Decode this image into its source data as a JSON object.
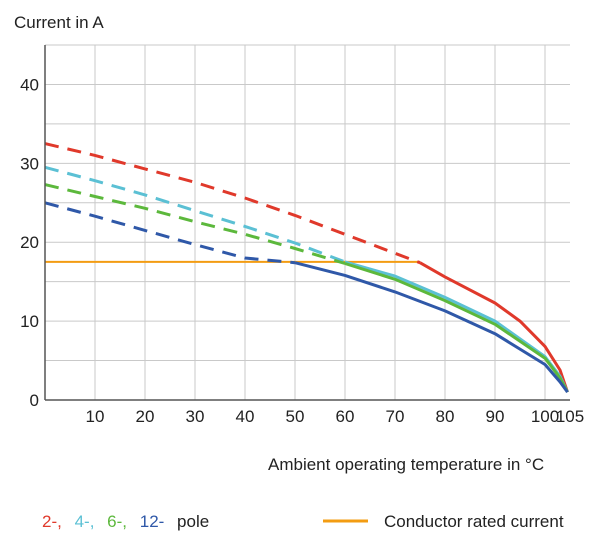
{
  "chart_data": {
    "type": "line",
    "ylabel": "Current in A",
    "xlabel": "Ambient operating temperature in °C",
    "xlim": [
      0,
      105
    ],
    "ylim": [
      0,
      45
    ],
    "x_ticks": [
      10,
      20,
      30,
      40,
      50,
      60,
      70,
      80,
      90,
      100,
      105
    ],
    "y_ticks": [
      0,
      10,
      20,
      30,
      40
    ],
    "grid": true,
    "series": [
      {
        "name": "2-,",
        "color": "#e0392b",
        "dashed_until_x": 75,
        "points": [
          [
            0,
            32.5
          ],
          [
            10,
            31.0
          ],
          [
            20,
            29.3
          ],
          [
            30,
            27.6
          ],
          [
            40,
            25.6
          ],
          [
            50,
            23.4
          ],
          [
            60,
            21.0
          ],
          [
            70,
            18.6
          ],
          [
            75,
            17.4
          ],
          [
            80,
            15.6
          ],
          [
            90,
            12.3
          ],
          [
            95,
            10.0
          ],
          [
            100,
            6.8
          ],
          [
            103,
            3.8
          ],
          [
            104.5,
            1.0
          ]
        ]
      },
      {
        "name": "4-,",
        "color": "#5bc0d4",
        "dashed_until_x": 60,
        "points": [
          [
            0,
            29.5
          ],
          [
            10,
            27.8
          ],
          [
            20,
            26.0
          ],
          [
            30,
            24.0
          ],
          [
            40,
            22.0
          ],
          [
            50,
            19.9
          ],
          [
            60,
            17.5
          ],
          [
            70,
            15.7
          ],
          [
            80,
            13.0
          ],
          [
            90,
            10.0
          ],
          [
            100,
            5.5
          ],
          [
            103,
            3.0
          ],
          [
            104.5,
            1.0
          ]
        ]
      },
      {
        "name": "6-,",
        "color": "#5cb83c",
        "dashed_until_x": 60,
        "points": [
          [
            0,
            27.3
          ],
          [
            10,
            25.8
          ],
          [
            20,
            24.3
          ],
          [
            30,
            22.6
          ],
          [
            40,
            21.0
          ],
          [
            50,
            19.2
          ],
          [
            60,
            17.3
          ],
          [
            70,
            15.3
          ],
          [
            80,
            12.6
          ],
          [
            90,
            9.6
          ],
          [
            100,
            5.3
          ],
          [
            103,
            2.8
          ],
          [
            104.5,
            1.0
          ]
        ]
      },
      {
        "name": "12-",
        "color": "#2f58a8",
        "dashed_until_x": 50,
        "points": [
          [
            0,
            25.0
          ],
          [
            10,
            23.3
          ],
          [
            20,
            21.5
          ],
          [
            30,
            19.7
          ],
          [
            40,
            18.0
          ],
          [
            50,
            17.4
          ],
          [
            60,
            15.8
          ],
          [
            70,
            13.7
          ],
          [
            80,
            11.3
          ],
          [
            90,
            8.4
          ],
          [
            100,
            4.5
          ],
          [
            103,
            2.3
          ],
          [
            104.5,
            1.0
          ]
        ]
      },
      {
        "name": "Conductor rated current",
        "color": "#f39c12",
        "points": [
          [
            0,
            17.5
          ],
          [
            75,
            17.5
          ]
        ]
      }
    ],
    "legend": {
      "pole_suffix": "pole",
      "position": "bottom"
    }
  }
}
